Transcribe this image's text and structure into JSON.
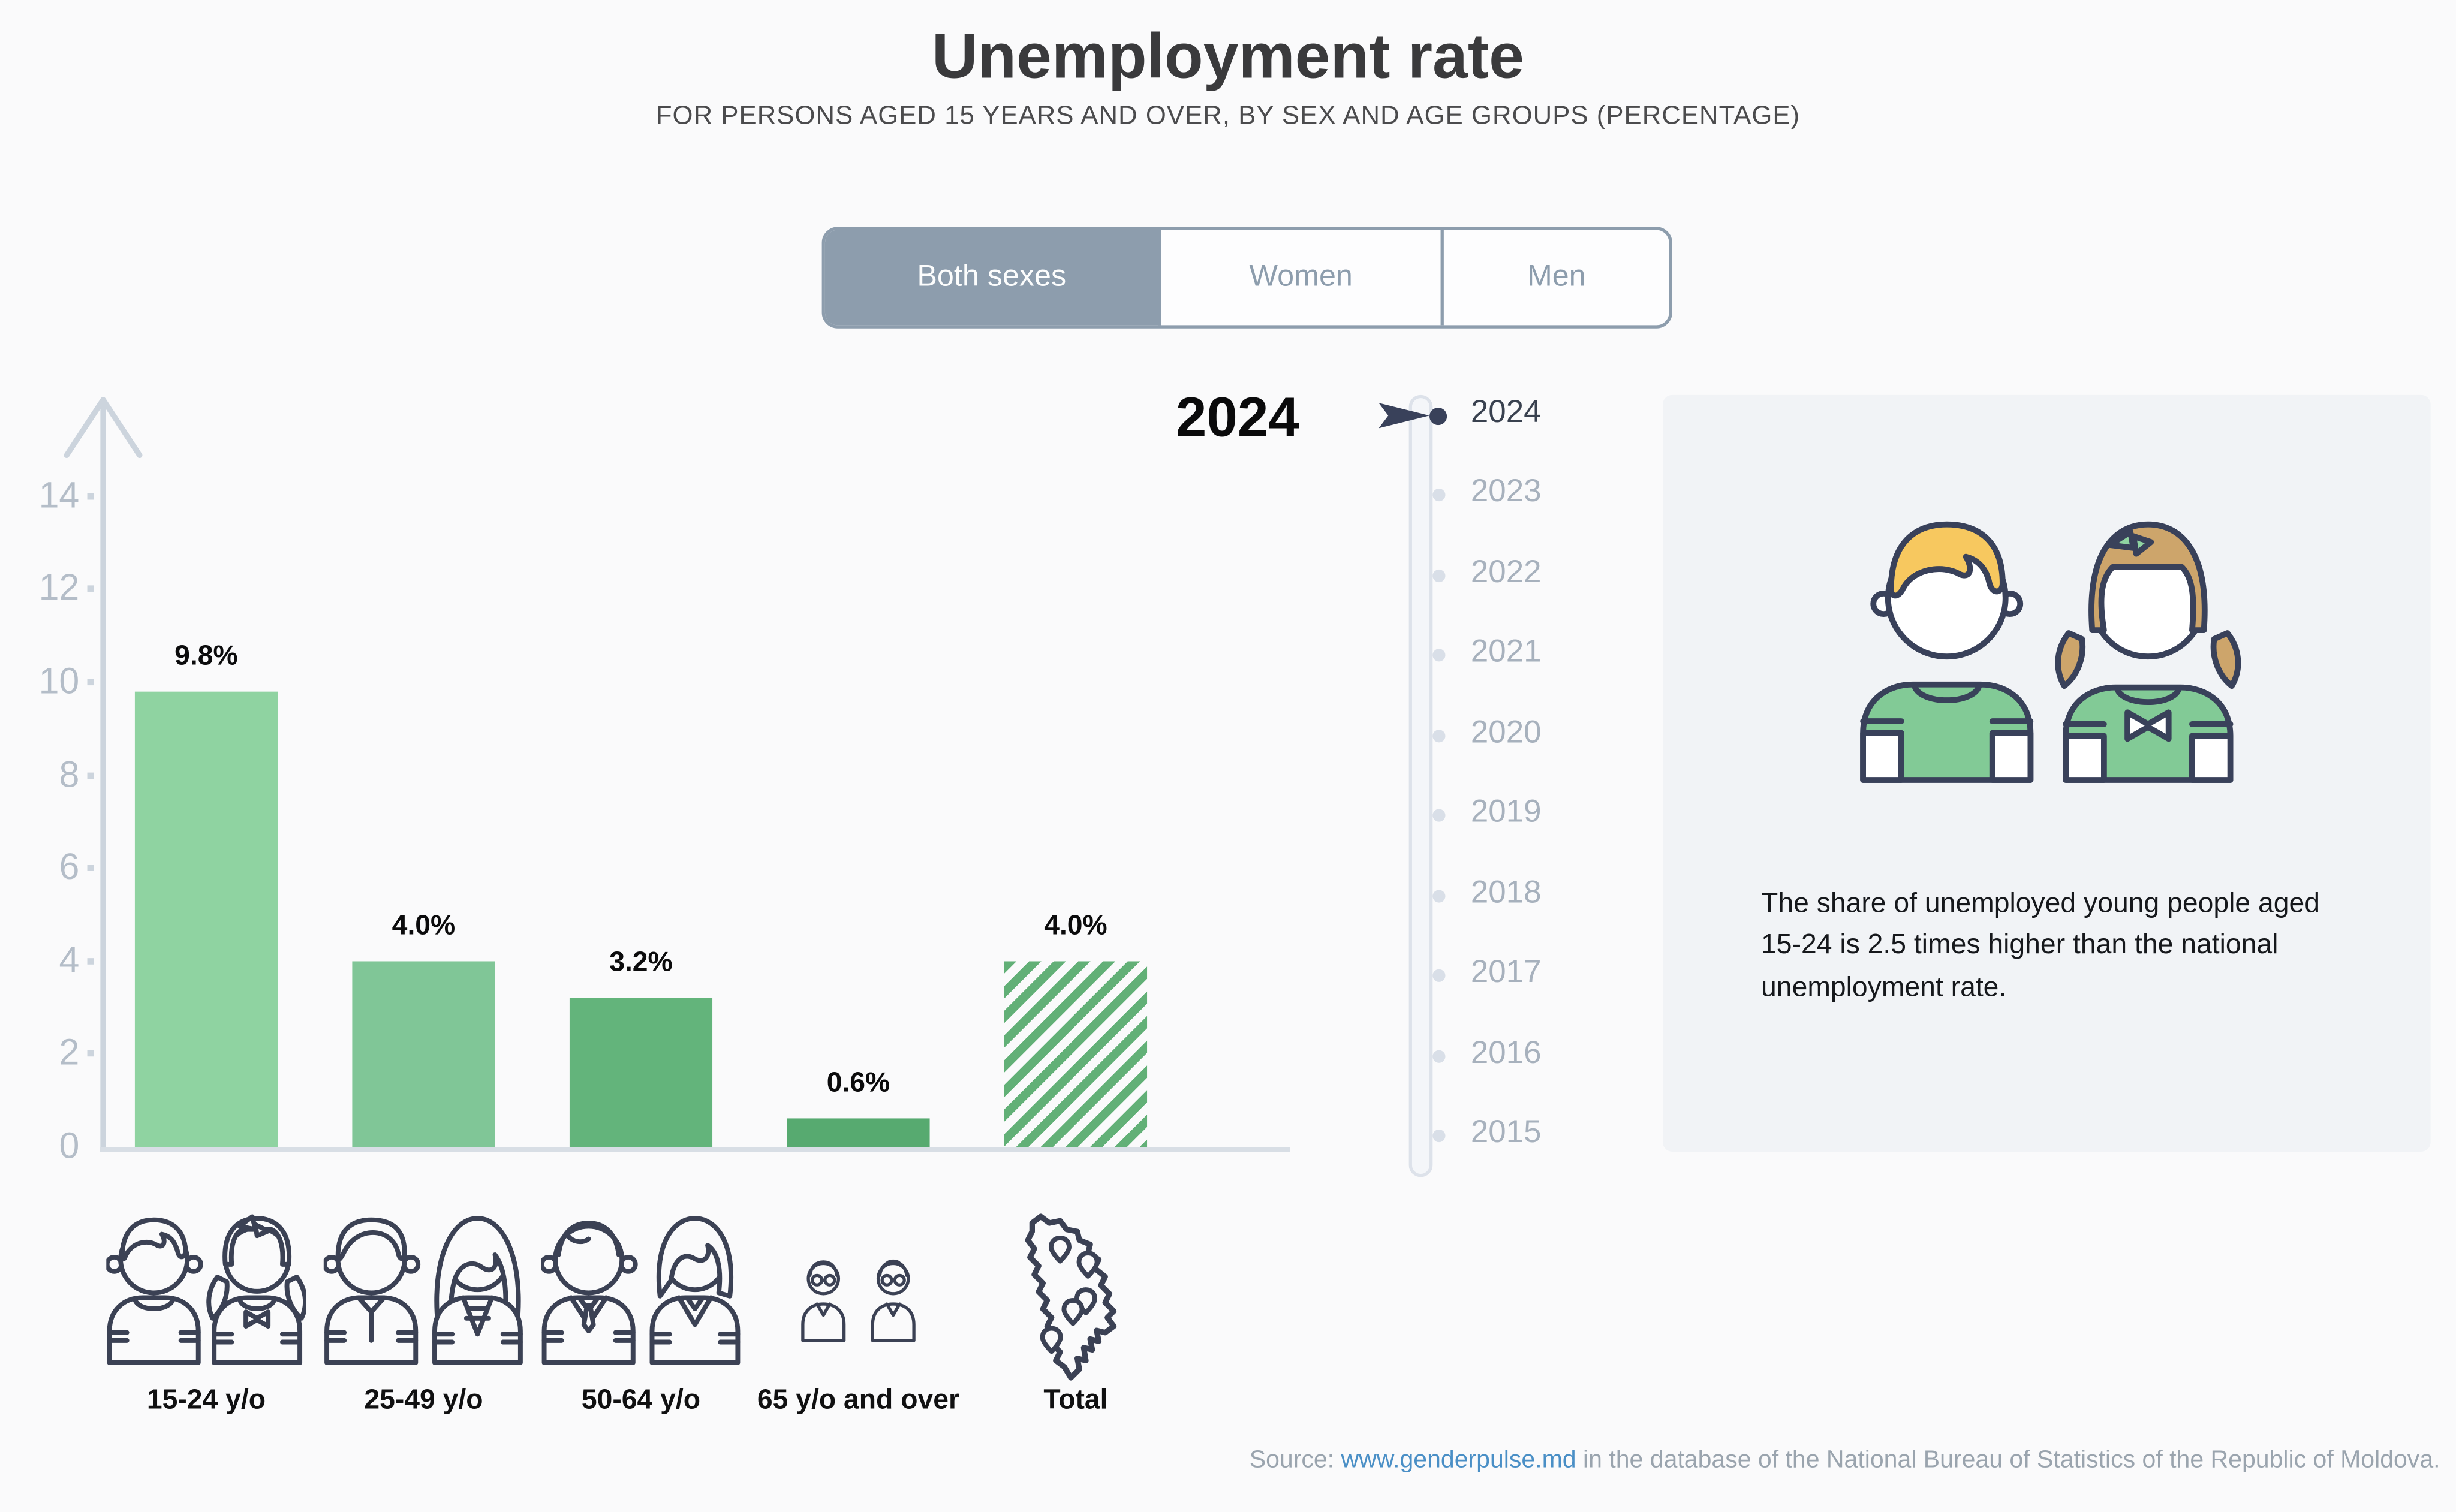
{
  "page": {
    "title": "Unemployment rate",
    "subtitle": "FOR PERSONS AGED 15 YEARS AND OVER, BY SEX AND AGE GROUPS (PERCENTAGE)"
  },
  "tabs": [
    {
      "label": "Both sexes",
      "selected": true
    },
    {
      "label": "Women",
      "selected": false
    },
    {
      "label": "Men",
      "selected": false
    }
  ],
  "chart_data": {
    "type": "bar",
    "title": "Unemployment rate",
    "year": "2024",
    "categories": [
      "15-24 y/o",
      "25-49 y/o",
      "50-64 y/o",
      "65 y/o and over",
      "Total"
    ],
    "values": [
      9.8,
      4.0,
      3.2,
      0.6,
      4.0
    ],
    "value_labels": [
      "9.8%",
      "4.0%",
      "3.2%",
      "0.6%",
      "4.0%"
    ],
    "bar_colors": [
      "#8fd3a1",
      "#80c697",
      "#63b47b",
      "#57aa70",
      "hatch"
    ],
    "hatch_color": "#62b077",
    "xlabel": "",
    "ylabel": "",
    "ylim": [
      0,
      15
    ],
    "yticks": [
      0,
      2,
      4,
      6,
      8,
      10,
      12,
      14
    ],
    "grid": false,
    "legend": null
  },
  "category_icons": [
    "young-boy-girl-icon",
    "adult-man-woman-icon",
    "older-man-woman-icon",
    "elderly-couple-icon",
    "moldova-map-icon"
  ],
  "timeline": {
    "years": [
      "2024",
      "2023",
      "2022",
      "2021",
      "2020",
      "2019",
      "2018",
      "2017",
      "2016",
      "2015"
    ],
    "selected": "2024"
  },
  "infocard": {
    "text": "The share of unemployed young people aged 15-24 is 2.5 times higher than the national unemployment rate.",
    "illustration": "boy-and-girl-green-shirts"
  },
  "source": {
    "prefix": "Source: ",
    "link": "www.genderpulse.md",
    "suffix": " in the database of the National Bureau of Statistics of the Republic of Moldova."
  },
  "colors": {
    "background": "#fafafb",
    "accent_navy": "#3b4154",
    "tab_accent": "#8d9dad",
    "axis_gray": "#ccd4dd",
    "link_blue": "#4a8fc6",
    "card_bg": "#f1f3f6"
  }
}
